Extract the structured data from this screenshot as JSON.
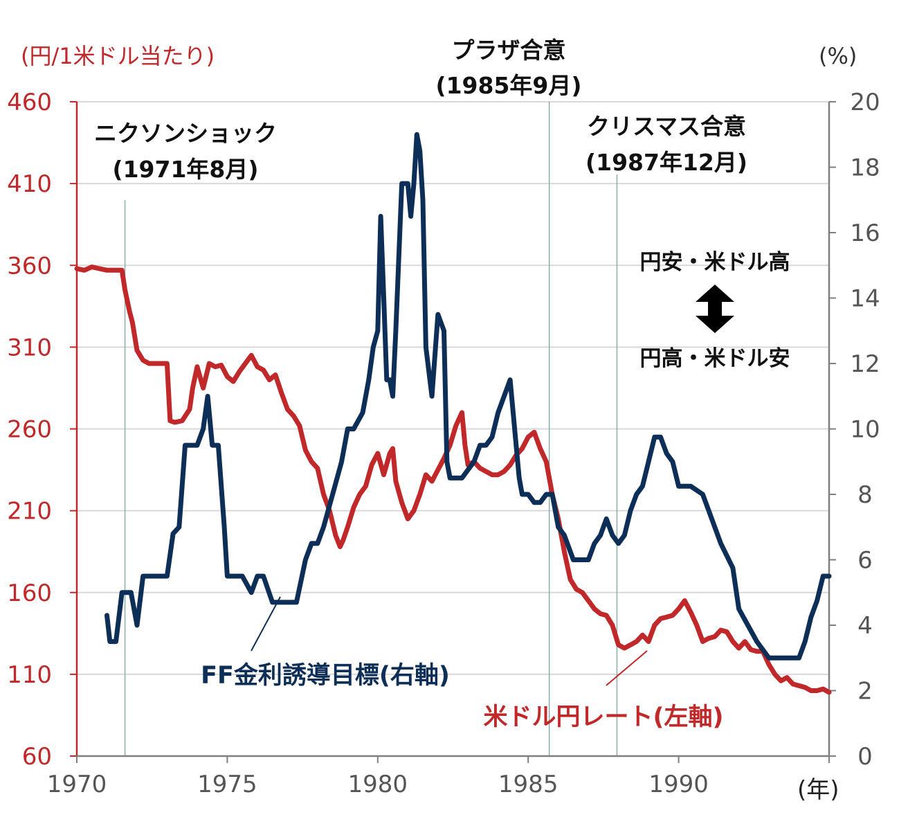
{
  "chart_data": {
    "type": "line",
    "left_axis": {
      "unit": "(円/1米ドル当たり)",
      "ylim": [
        60,
        460
      ],
      "ticks": [
        "60",
        "110",
        "160",
        "210",
        "260",
        "310",
        "360",
        "410",
        "460"
      ]
    },
    "right_axis": {
      "unit": "(%)",
      "ylim": [
        0,
        20
      ],
      "ticks": [
        "0",
        "2",
        "4",
        "6",
        "8",
        "10",
        "12",
        "14",
        "16",
        "18",
        "20"
      ]
    },
    "x_axis": {
      "unit": "(年)",
      "xlim": [
        1970,
        1995
      ],
      "ticks": [
        "1970",
        "1975",
        "1980",
        "1985",
        "1990"
      ]
    },
    "events": [
      {
        "x": 1971.6,
        "title": "ニクソンショック",
        "date": "(1971年8月)"
      },
      {
        "x": 1985.7,
        "title": "プラザ合意",
        "date": "(1985年9月)"
      },
      {
        "x": 1987.95,
        "title": "クリスマス合意",
        "date": "(1987年12月)"
      }
    ],
    "direction": {
      "up": "円安・米ドル高",
      "down": "円高・米ドル安"
    },
    "colors": {
      "yen": "#c0282a",
      "ff": "#0d2f57",
      "axis_left": "#c0282a",
      "grid": "#d9d9d9"
    },
    "series": [
      {
        "name": "米ドル円レート(左軸)",
        "axis": "left",
        "x": [
          1970.0,
          1970.25,
          1970.5,
          1970.75,
          1971.0,
          1971.25,
          1971.5,
          1971.6,
          1971.75,
          1971.85,
          1972.0,
          1972.2,
          1972.4,
          1972.6,
          1972.8,
          1973.0,
          1973.1,
          1973.25,
          1973.5,
          1973.75,
          1973.85,
          1974.0,
          1974.2,
          1974.4,
          1974.6,
          1974.8,
          1975.0,
          1975.2,
          1975.4,
          1975.6,
          1975.8,
          1976.0,
          1976.2,
          1976.4,
          1976.6,
          1976.8,
          1977.0,
          1977.2,
          1977.4,
          1977.6,
          1977.8,
          1978.0,
          1978.2,
          1978.4,
          1978.6,
          1978.75,
          1978.85,
          1979.0,
          1979.2,
          1979.4,
          1979.6,
          1979.8,
          1980.0,
          1980.2,
          1980.4,
          1980.5,
          1980.6,
          1980.8,
          1981.0,
          1981.2,
          1981.4,
          1981.6,
          1981.8,
          1982.0,
          1982.2,
          1982.4,
          1982.6,
          1982.8,
          1982.9,
          1983.0,
          1983.2,
          1983.4,
          1983.6,
          1983.8,
          1984.0,
          1984.2,
          1984.4,
          1984.6,
          1984.8,
          1985.0,
          1985.2,
          1985.4,
          1985.6,
          1985.8,
          1986.0,
          1986.2,
          1986.4,
          1986.6,
          1986.8,
          1987.0,
          1987.2,
          1987.4,
          1987.6,
          1987.8,
          1988.0,
          1988.2,
          1988.4,
          1988.6,
          1988.8,
          1989.0,
          1989.2,
          1989.4,
          1989.6,
          1989.8,
          1990.0,
          1990.2,
          1990.4,
          1990.6,
          1990.8,
          1991.0,
          1991.2,
          1991.4,
          1991.6,
          1991.8,
          1992.0,
          1992.2,
          1992.4,
          1992.6,
          1992.8,
          1993.0,
          1993.2,
          1993.4,
          1993.6,
          1993.8,
          1994.0,
          1994.2,
          1994.4,
          1994.6,
          1994.8,
          1995.0
        ],
        "values": [
          358,
          357,
          359,
          358,
          357,
          357,
          357,
          345,
          332,
          325,
          308,
          302,
          300,
          300,
          300,
          300,
          265,
          264,
          265,
          272,
          285,
          298,
          285,
          300,
          298,
          299,
          292,
          289,
          295,
          300,
          305,
          298,
          296,
          290,
          293,
          282,
          272,
          268,
          262,
          247,
          240,
          236,
          220,
          210,
          195,
          188,
          192,
          200,
          212,
          220,
          225,
          238,
          245,
          232,
          245,
          248,
          228,
          215,
          205,
          210,
          220,
          232,
          228,
          235,
          242,
          250,
          262,
          270,
          250,
          238,
          240,
          236,
          234,
          232,
          232,
          234,
          238,
          244,
          248,
          255,
          258,
          248,
          240,
          220,
          205,
          185,
          168,
          162,
          160,
          155,
          150,
          147,
          146,
          140,
          128,
          126,
          128,
          130,
          134,
          130,
          140,
          144,
          145,
          146,
          150,
          155,
          148,
          140,
          130,
          132,
          133,
          137,
          136,
          130,
          126,
          130,
          125,
          124,
          124,
          116,
          110,
          106,
          108,
          104,
          103,
          102,
          100,
          100,
          101,
          99
        ]
      },
      {
        "name": "FF金利誘導目標(右軸)",
        "axis": "right",
        "x": [
          1971.0,
          1971.1,
          1971.3,
          1971.5,
          1971.8,
          1972.0,
          1972.2,
          1972.35,
          1972.6,
          1973.0,
          1973.2,
          1973.4,
          1973.6,
          1973.8,
          1974.0,
          1974.2,
          1974.35,
          1974.5,
          1974.7,
          1974.9,
          1975.0,
          1975.2,
          1975.5,
          1975.8,
          1976.0,
          1976.2,
          1976.5,
          1976.7,
          1977.0,
          1977.3,
          1977.6,
          1977.8,
          1978.0,
          1978.2,
          1978.5,
          1978.8,
          1979.0,
          1979.2,
          1979.5,
          1979.7,
          1979.85,
          1980.0,
          1980.1,
          1980.2,
          1980.3,
          1980.4,
          1980.5,
          1980.6,
          1980.8,
          1981.0,
          1981.1,
          1981.2,
          1981.3,
          1981.4,
          1981.5,
          1981.6,
          1981.8,
          1982.0,
          1982.2,
          1982.3,
          1982.4,
          1982.6,
          1982.8,
          1983.0,
          1983.2,
          1983.4,
          1983.6,
          1983.8,
          1984.0,
          1984.2,
          1984.4,
          1984.6,
          1984.7,
          1984.8,
          1985.0,
          1985.2,
          1985.4,
          1985.6,
          1985.8,
          1986.0,
          1986.2,
          1986.5,
          1986.8,
          1987.0,
          1987.2,
          1987.4,
          1987.6,
          1987.8,
          1988.0,
          1988.2,
          1988.4,
          1988.6,
          1988.8,
          1989.0,
          1989.2,
          1989.4,
          1989.6,
          1989.8,
          1990.0,
          1990.4,
          1990.8,
          1991.0,
          1991.4,
          1991.8,
          1992.0,
          1992.3,
          1992.6,
          1993.0,
          1993.5,
          1994.0,
          1994.2,
          1994.4,
          1994.6,
          1994.8,
          1995.0
        ],
        "values": [
          4.3,
          3.5,
          3.5,
          5.0,
          5.0,
          4.0,
          5.5,
          5.5,
          5.5,
          5.5,
          6.8,
          7.0,
          9.5,
          9.5,
          9.5,
          10.0,
          11.0,
          9.5,
          9.5,
          7.0,
          5.5,
          5.5,
          5.5,
          5.0,
          5.5,
          5.5,
          4.7,
          4.7,
          4.7,
          4.7,
          6.0,
          6.5,
          6.5,
          7.0,
          8.0,
          9.0,
          10.0,
          10.0,
          10.5,
          11.5,
          12.5,
          13.0,
          16.5,
          14.0,
          11.5,
          11.5,
          11.0,
          13.0,
          17.5,
          17.5,
          16.5,
          17.5,
          19.0,
          18.5,
          17.0,
          12.5,
          11.0,
          13.5,
          13.0,
          9.0,
          8.5,
          8.5,
          8.5,
          8.75,
          9.0,
          9.5,
          9.5,
          9.75,
          10.5,
          11.0,
          11.5,
          9.5,
          8.5,
          8.0,
          8.0,
          7.75,
          7.75,
          8.0,
          8.0,
          7.0,
          6.75,
          6.0,
          6.0,
          6.0,
          6.5,
          6.75,
          7.25,
          6.75,
          6.5,
          6.75,
          7.5,
          8.0,
          8.25,
          9.0,
          9.75,
          9.75,
          9.25,
          9.0,
          8.25,
          8.25,
          8.0,
          7.5,
          6.5,
          5.75,
          4.5,
          4.0,
          3.5,
          3.0,
          3.0,
          3.0,
          3.5,
          4.25,
          4.75,
          5.5,
          5.5
        ]
      }
    ]
  }
}
